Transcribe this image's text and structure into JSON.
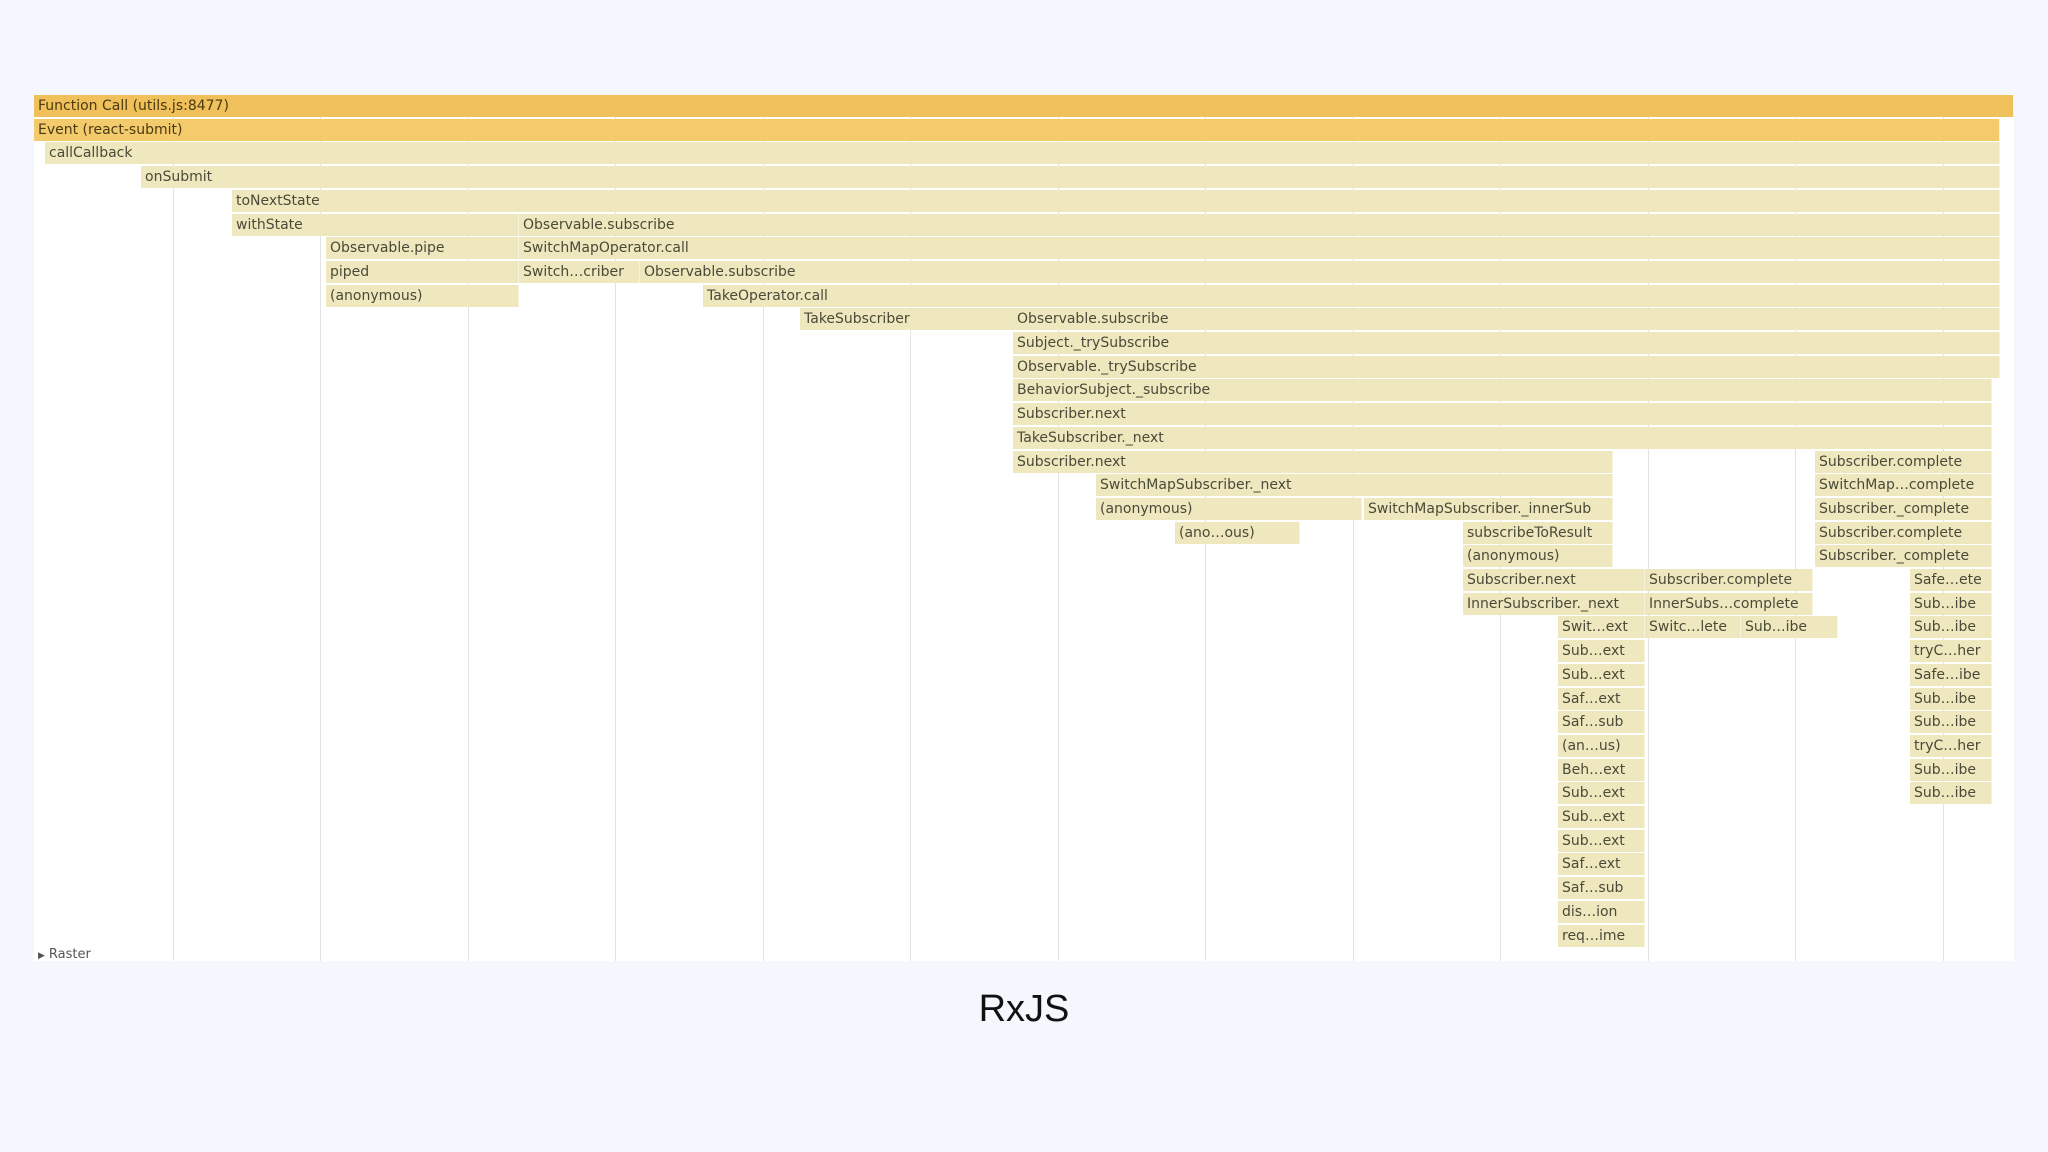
{
  "caption": "RxJS",
  "raster_label": "Raster",
  "flame_rows": [
    [
      "Function Call (utils.js:8477)"
    ],
    [
      "Event (react-submit)"
    ],
    [
      "callCallback"
    ],
    [
      "onSubmit"
    ],
    [
      "toNextState"
    ],
    [
      "withState",
      "Observable.subscribe"
    ],
    [
      "Observable.pipe",
      "SwitchMapOperator.call"
    ],
    [
      "piped",
      "Switch…criber",
      "Observable.subscribe"
    ],
    [
      "(anonymous)",
      "TakeOperator.call"
    ],
    [
      "TakeSubscriber",
      "Observable.subscribe"
    ],
    [
      "Subject._trySubscribe"
    ],
    [
      "Observable._trySubscribe"
    ],
    [
      "BehaviorSubject._subscribe"
    ],
    [
      "Subscriber.next"
    ],
    [
      "TakeSubscriber._next"
    ],
    [
      "Subscriber.next",
      "Subscriber.complete"
    ],
    [
      "SwitchMapSubscriber._next",
      "SwitchMap…complete"
    ],
    [
      "(anonymous)",
      "SwitchMapSubscriber._innerSub",
      "Subscriber._complete"
    ],
    [
      "(ano…ous)",
      "subscribeToResult",
      "Subscriber.complete"
    ],
    [
      "(anonymous)",
      "Subscriber._complete"
    ],
    [
      "Subscriber.next",
      "Subscriber.complete",
      "Safe…ete"
    ],
    [
      "InnerSubscriber._next",
      "InnerSubs…complete",
      "Sub…ibe"
    ],
    [
      "Swit…ext",
      "Switc…lete",
      "Sub…ibe",
      "Sub…ibe"
    ],
    [
      "Sub…ext",
      "tryC…her"
    ],
    [
      "Sub…ext",
      "Safe…ibe"
    ],
    [
      "Saf…ext",
      "Sub…ibe"
    ],
    [
      "Saf…sub",
      "Sub…ibe"
    ],
    [
      "(an…us)",
      "tryC…her"
    ],
    [
      "Beh…ext",
      "Sub…ibe"
    ],
    [
      "Sub…ext",
      "Sub…ibe"
    ],
    [
      "Sub…ext"
    ],
    [
      "Sub…ext"
    ],
    [
      "Saf…ext"
    ],
    [
      "Saf…sub"
    ],
    [
      "dis…ion"
    ],
    [
      "req…ime"
    ]
  ]
}
